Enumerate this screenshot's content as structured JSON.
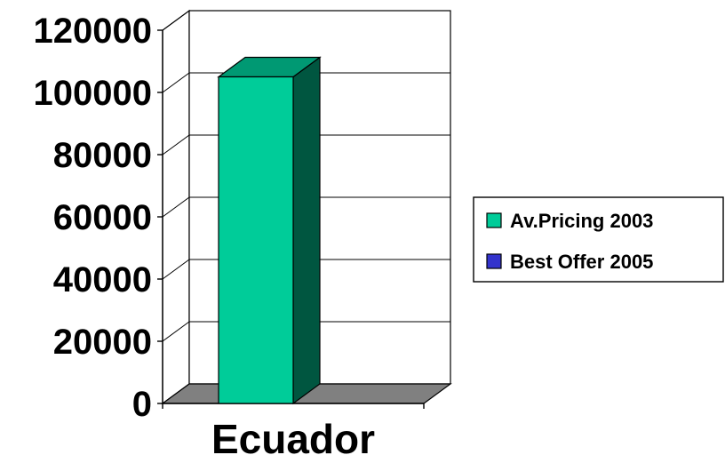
{
  "chart_data": {
    "type": "bar",
    "categories": [
      "Ecuador"
    ],
    "series": [
      {
        "name": "Av.Pricing 2003",
        "values": [
          105000
        ],
        "color": "#00cc99"
      },
      {
        "name": "Best Offer 2005",
        "values": [
          0
        ],
        "color": "#3333cc"
      }
    ],
    "ylim": [
      0,
      120000
    ],
    "yticks": [
      "0",
      "20000",
      "40000",
      "60000",
      "80000",
      "100000",
      "120000"
    ],
    "grid": true,
    "legend": "right",
    "three_d": true
  }
}
